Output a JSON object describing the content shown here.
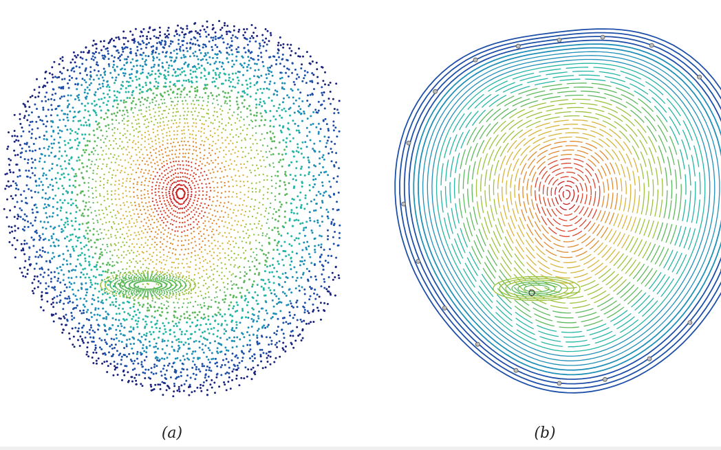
{
  "figure": {
    "panels": [
      {
        "id": "a",
        "caption": "(a)"
      },
      {
        "id": "b",
        "caption": "(b)"
      }
    ],
    "colormap": [
      "#1a237e",
      "#1e4fa8",
      "#1f8fb8",
      "#25b5a5",
      "#5cb85c",
      "#9ac23c",
      "#d7b43a",
      "#e08a2e",
      "#d9442a",
      "#c81e1e"
    ]
  }
}
